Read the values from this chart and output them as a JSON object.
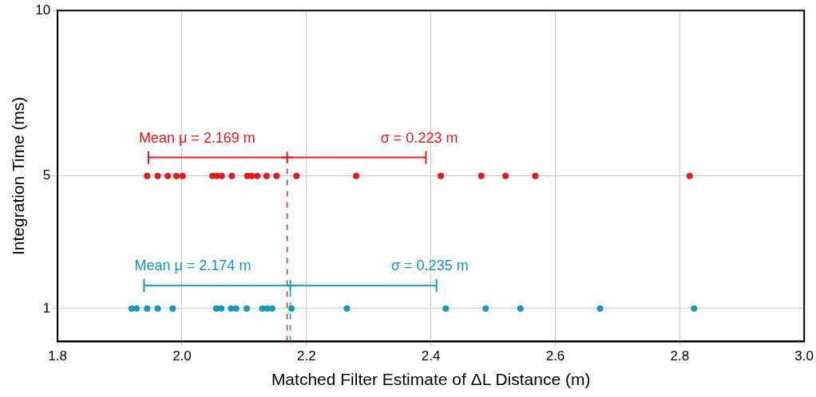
{
  "chart_data": {
    "type": "scatter",
    "xlabel": "Matched Filter Estimate of ΔL Distance (m)",
    "ylabel": "Integration Time (ms)",
    "xlim": [
      1.8,
      3.0
    ],
    "xticks": [
      {
        "value": 1.8,
        "label": "1.8"
      },
      {
        "value": 2.0,
        "label": "2.0"
      },
      {
        "value": 2.2,
        "label": "2.2"
      },
      {
        "value": 2.4,
        "label": "2.4"
      },
      {
        "value": 2.6,
        "label": "2.6"
      },
      {
        "value": 2.8,
        "label": "2.8"
      },
      {
        "value": 3.0,
        "label": "3.0"
      }
    ],
    "ylim": [
      0,
      10
    ],
    "yticks": [
      1,
      5,
      10
    ],
    "grid": true,
    "legend": false,
    "marker": "circle",
    "series": [
      {
        "color": "#e8191b",
        "x": [
          1.944,
          1.961,
          1.977,
          1.991,
          2.001,
          2.049,
          2.056,
          2.064,
          2.08,
          2.105,
          2.112,
          2.121,
          2.136,
          2.152,
          2.184,
          2.28,
          2.416,
          2.481,
          2.52,
          2.568,
          2.816
        ],
        "values": [
          5,
          5,
          5,
          5,
          5,
          5,
          5,
          5,
          5,
          5,
          5,
          5,
          5,
          5,
          5,
          5,
          5,
          5,
          5,
          5,
          5
        ]
      },
      {
        "color": "#1499c0",
        "x": [
          1.919,
          1.927,
          1.944,
          1.961,
          1.985,
          2.055,
          2.063,
          2.079,
          2.087,
          2.104,
          2.129,
          2.137,
          2.145,
          2.176,
          2.265,
          2.424,
          2.488,
          2.544,
          2.672,
          2.823
        ],
        "values": [
          1,
          1,
          1,
          1,
          1,
          1,
          1,
          1,
          1,
          1,
          1,
          1,
          1,
          1,
          1,
          1,
          1,
          1,
          1,
          1
        ]
      },
      {
        "marker": "cross",
        "color": "#e8191b",
        "x": [
          2.169
        ],
        "values": [
          5.56
        ],
        "xerrors": [
          0.223
        ]
      },
      {
        "marker": "cross",
        "color": "#1499c0",
        "x": [
          2.174
        ],
        "values": [
          1.69
        ],
        "xerrors": [
          0.235
        ]
      },
      {
        "type": "line",
        "marker": "none",
        "line_style": "dashed",
        "color": "#c0392b",
        "x": [
          2.169,
          2.169
        ],
        "values": [
          0,
          5.56
        ]
      },
      {
        "type": "line",
        "marker": "none",
        "line_style": "dashed",
        "color": "#1499c0",
        "x": [
          2.174,
          2.174
        ],
        "values": [
          0,
          1.69
        ]
      }
    ],
    "annotations": [
      "Mean μ = 2.169 m",
      "σ = 0.223 m",
      "Mean μ = 2.174 m",
      "σ = 0.235 m"
    ]
  }
}
